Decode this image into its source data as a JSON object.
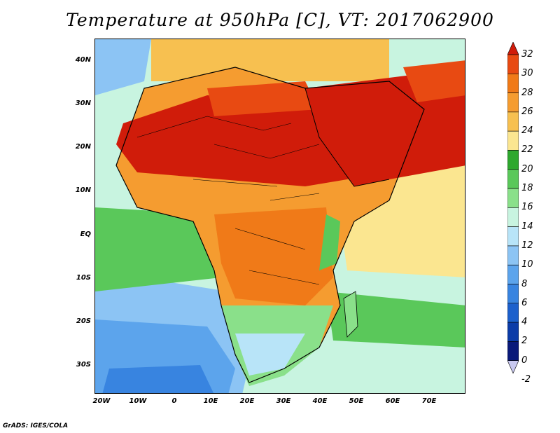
{
  "title": "Temperature at 950hPa [C], VT: 2017062900",
  "footer": "GrADS: IGES/COLA",
  "map": {
    "projection": "lat-lon",
    "lon_range": [
      -25,
      80
    ],
    "lat_range": [
      -36,
      45
    ],
    "lat_labels": [
      "40N",
      "30N",
      "20N",
      "10N",
      "EQ",
      "10S",
      "20S",
      "30S"
    ],
    "lon_labels": [
      "20W",
      "10W",
      "0",
      "10E",
      "20E",
      "30E",
      "40E",
      "50E",
      "60E",
      "70E"
    ],
    "field": "Temperature at 950hPa",
    "units": "C",
    "valid_time": "2017062900"
  },
  "colorbar": {
    "labels": [
      "32",
      "30",
      "28",
      "26",
      "24",
      "22",
      "20",
      "18",
      "16",
      "14",
      "12",
      "10",
      "8",
      "6",
      "4",
      "2",
      "0",
      "-2"
    ],
    "colors": [
      "#d01c0a",
      "#e84a12",
      "#f07a18",
      "#f59c30",
      "#f7c050",
      "#fbe690",
      "#2ea82e",
      "#5ac85a",
      "#8ae08a",
      "#c8f4e0",
      "#b8e4f8",
      "#8cc4f4",
      "#5ca4ec",
      "#3884e0",
      "#1c60cc",
      "#0c3ca8",
      "#0a1a7a",
      "#c8c8f0"
    ]
  }
}
